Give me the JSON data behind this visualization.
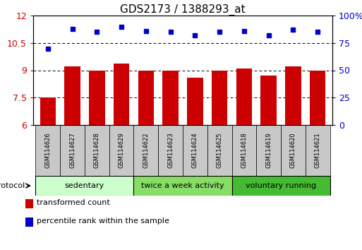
{
  "title": "GDS2173 / 1388293_at",
  "samples": [
    "GSM114626",
    "GSM114627",
    "GSM114628",
    "GSM114629",
    "GSM114622",
    "GSM114623",
    "GSM114624",
    "GSM114625",
    "GSM114618",
    "GSM114619",
    "GSM114620",
    "GSM114621"
  ],
  "bar_values": [
    7.5,
    9.2,
    9.0,
    9.35,
    9.0,
    9.0,
    8.6,
    9.0,
    9.1,
    8.7,
    9.2,
    9.0
  ],
  "dot_values": [
    70,
    88,
    85,
    90,
    86,
    85,
    82,
    85,
    86,
    82,
    87,
    85
  ],
  "bar_color": "#cc0000",
  "dot_color": "#0000cc",
  "ylim_left": [
    6,
    12
  ],
  "ylim_right": [
    0,
    100
  ],
  "yticks_left": [
    6,
    7.5,
    9,
    10.5,
    12
  ],
  "yticks_right": [
    0,
    25,
    50,
    75,
    100
  ],
  "ytick_labels_left": [
    "6",
    "7.5",
    "9",
    "10.5",
    "12"
  ],
  "ytick_labels_right": [
    "0",
    "25",
    "50",
    "75",
    "100%"
  ],
  "groups": [
    {
      "label": "sedentary",
      "start": 0,
      "end": 4,
      "color": "#ccffcc"
    },
    {
      "label": "twice a week activity",
      "start": 4,
      "end": 8,
      "color": "#88dd66"
    },
    {
      "label": "voluntary running",
      "start": 8,
      "end": 12,
      "color": "#44bb33"
    }
  ],
  "protocol_label": "protocol",
  "legend_items": [
    {
      "label": "transformed count",
      "color": "#cc0000"
    },
    {
      "label": "percentile rank within the sample",
      "color": "#0000cc"
    }
  ],
  "background_color": "#ffffff",
  "bar_bottom": 6.0,
  "bar_width": 0.65,
  "sample_box_color": "#c8c8c8"
}
